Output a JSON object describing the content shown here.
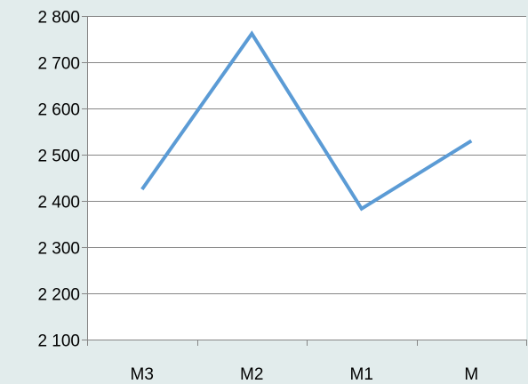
{
  "chart_data": {
    "type": "line",
    "categories": [
      "M3",
      "M2",
      "M1",
      "M"
    ],
    "series": [
      {
        "values": [
          2425,
          2762,
          2383,
          2530
        ],
        "color": "#5b9bd5"
      }
    ],
    "ylim": [
      2100,
      2800
    ],
    "y_ticks": [
      2100,
      2200,
      2300,
      2400,
      2500,
      2600,
      2700,
      2800
    ],
    "y_tick_labels": [
      "2 100",
      "2 200",
      "2 300",
      "2 400",
      "2 500",
      "2 600",
      "2 700",
      "2 800"
    ],
    "grid": true,
    "legend": "none",
    "background": "#e2ecec"
  }
}
